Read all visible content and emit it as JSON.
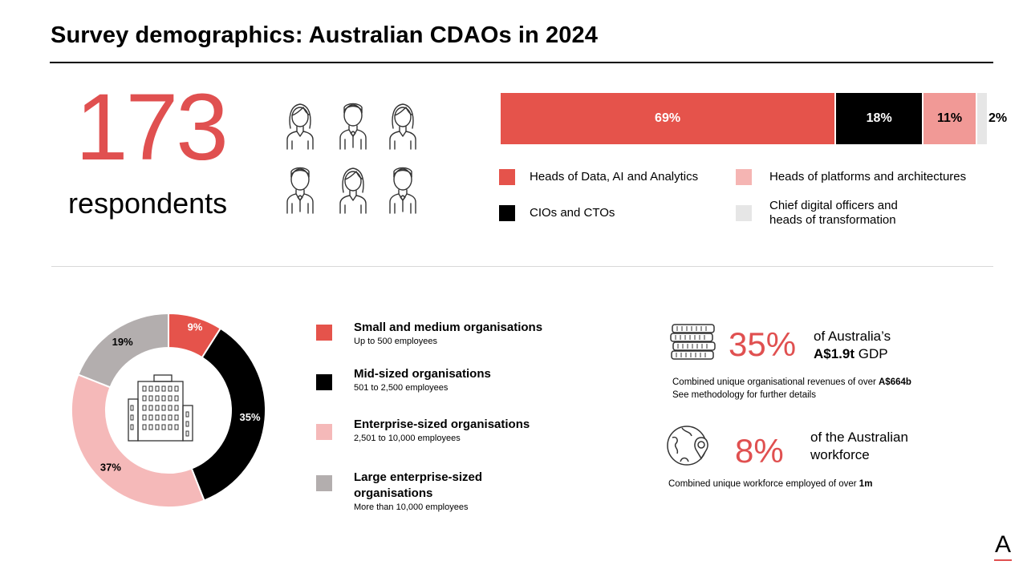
{
  "title": "Survey demographics: Australian CDAOs in 2024",
  "respondents": {
    "count": "173",
    "label": "respondents"
  },
  "role_chart": {
    "type": "bar",
    "orientation": "stacked-horizontal",
    "segments": [
      {
        "name": "Heads of Data, AI and Analytics",
        "value": 69,
        "label": "69%",
        "color": "#e5534b",
        "text_color": "#ffffff"
      },
      {
        "name": "CIOs and CTOs",
        "value": 18,
        "label": "18%",
        "color": "#000000",
        "text_color": "#ffffff"
      },
      {
        "name": "Heads of platforms and architectures",
        "value": 11,
        "label": "11%",
        "color": "#f19996",
        "text_color": "#000000"
      },
      {
        "name": "Chief digital officers and heads of transformation",
        "value": 2,
        "label": "2%",
        "color": "#e6e6e6",
        "text_color": "#000000"
      }
    ],
    "legend": [
      {
        "label": "Heads of Data, AI and Analytics",
        "color": "#e5534b"
      },
      {
        "label": "CIOs and CTOs",
        "color": "#000000"
      },
      {
        "label": "Heads of platforms and architectures",
        "color": "#f5b5b3"
      },
      {
        "label_line1": "Chief digital officers and",
        "label_line2": "heads of transformation",
        "color": "#e6e6e6"
      }
    ]
  },
  "chart_data": {
    "type": "pie",
    "variant": "donut",
    "slices": [
      {
        "name": "Small and medium organisations",
        "value": 9,
        "label": "9%",
        "color": "#e5534b",
        "label_color": "#ffffff"
      },
      {
        "name": "Mid-sized organisations",
        "value": 35,
        "label": "35%",
        "color": "#000000",
        "label_color": "#ffffff"
      },
      {
        "name": "Enterprise-sized organisations",
        "value": 37,
        "label": "37%",
        "color": "#f5b9b9",
        "label_color": "#000000"
      },
      {
        "name": "Large enterprise-sized organisations",
        "value": 19,
        "label": "19%",
        "color": "#b3aeae",
        "label_color": "#000000"
      }
    ],
    "center_icon": "office-building-icon"
  },
  "org_legend": [
    {
      "title": "Small and medium organisations",
      "sub": "Up to 500 employees",
      "color": "#e5534b"
    },
    {
      "title": "Mid-sized organisations",
      "sub": "501 to 2,500 employees",
      "color": "#000000"
    },
    {
      "title": "Enterprise-sized organisations",
      "sub": "2,501 to 10,000 employees",
      "color": "#f5b9b9"
    },
    {
      "title_line1": "Large enterprise-sized",
      "title_line2": "organisations",
      "sub": "More than  10,000 employees",
      "color": "#b3aeae"
    }
  ],
  "stat_gdp": {
    "icon": "coins-stack-icon",
    "value": "35%",
    "text_line1": "of Australia’s",
    "text_line2_bold": "A$1.9t",
    "text_line2_rest": " GDP",
    "note_line1_prefix": "Combined unique organisational revenues of over ",
    "note_line1_bold": "A$664b",
    "note_line2": "See methodology for further details"
  },
  "stat_workforce": {
    "icon": "globe-location-icon",
    "value": "8%",
    "text_line1": "of the Australian",
    "text_line2": "workforce",
    "note_prefix": "Combined unique workforce employed of over ",
    "note_bold": "1m"
  },
  "brand": {
    "logo_letter": "A",
    "accent": "#e05050"
  },
  "people_icons": [
    "woman-icon",
    "man-icon",
    "woman-icon",
    "man-icon",
    "woman-icon",
    "man-icon"
  ]
}
